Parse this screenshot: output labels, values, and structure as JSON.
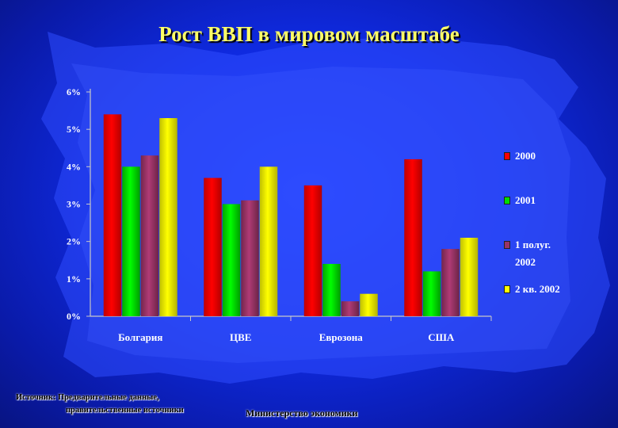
{
  "title": "Рост ВВП в мировом масштабе",
  "source_line1": "Источник: Предварительные данные,",
  "source_line2": "правительственные источники",
  "ministry": "Министерство экономики",
  "chart_data": {
    "type": "bar",
    "title": "Рост ВВП в мировом масштабе",
    "categories": [
      "Болгария",
      "ЦВЕ",
      "Еврозона",
      "США"
    ],
    "y_ticks": [
      "0%",
      "1%",
      "2%",
      "3%",
      "4%",
      "5%",
      "6%"
    ],
    "ylim": [
      0,
      6
    ],
    "legend_position": "right",
    "grid": false,
    "series": [
      {
        "name": "2000",
        "color": "#ff0000",
        "values": [
          5.4,
          3.7,
          3.5,
          4.2
        ]
      },
      {
        "name": "2001",
        "color": "#00dd00",
        "values": [
          4.0,
          3.0,
          1.4,
          1.2
        ]
      },
      {
        "name": "1 полуг.\n2002",
        "color": "#993366",
        "values": [
          4.3,
          3.1,
          0.4,
          1.8
        ]
      },
      {
        "name": "2 кв. 2002",
        "color": "#ffff00",
        "values": [
          5.3,
          4.0,
          0.6,
          2.1
        ]
      }
    ]
  }
}
